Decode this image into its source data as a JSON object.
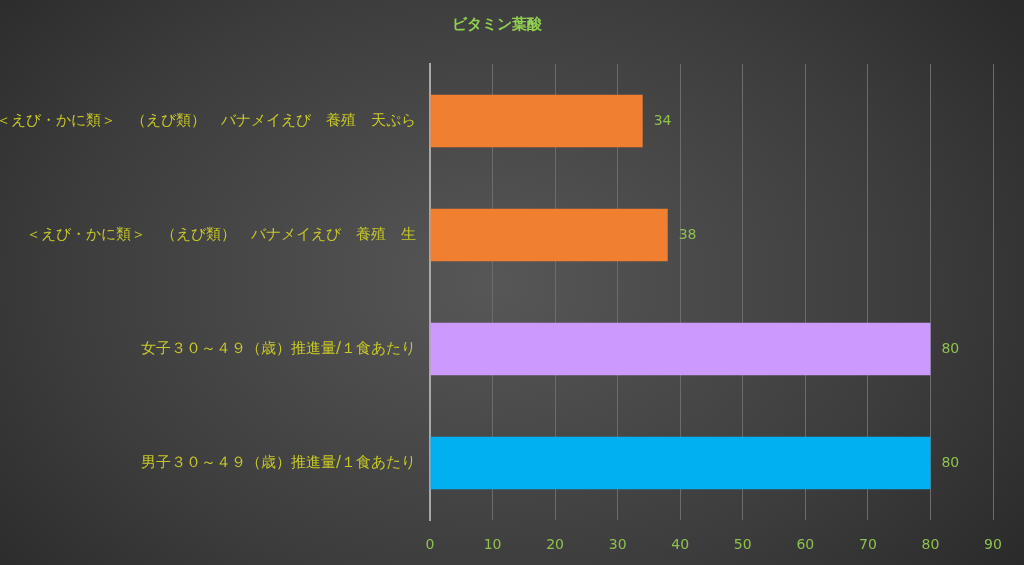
{
  "chart_data": {
    "type": "bar",
    "orientation": "horizontal",
    "title": "ビタミン葉酸",
    "categories": [
      "＜えび・かに類＞　（えび類）　バナメイえび　養殖　天ぷら",
      "＜えび・かに類＞　（えび類）　バナメイえび　養殖　生",
      "女子３０～４９（歳）推進量/１食あたり",
      "男子３０～４９（歳）推進量/１食あたり"
    ],
    "values": [
      34,
      38,
      80,
      80
    ],
    "colors": [
      "#f07f30",
      "#f07f30",
      "#cc99ff",
      "#00b0f0"
    ],
    "xlim": [
      0,
      90
    ],
    "xticks": [
      0,
      10,
      20,
      30,
      40,
      50,
      60,
      70,
      80,
      90
    ],
    "grid": "x",
    "data_labels": true
  }
}
